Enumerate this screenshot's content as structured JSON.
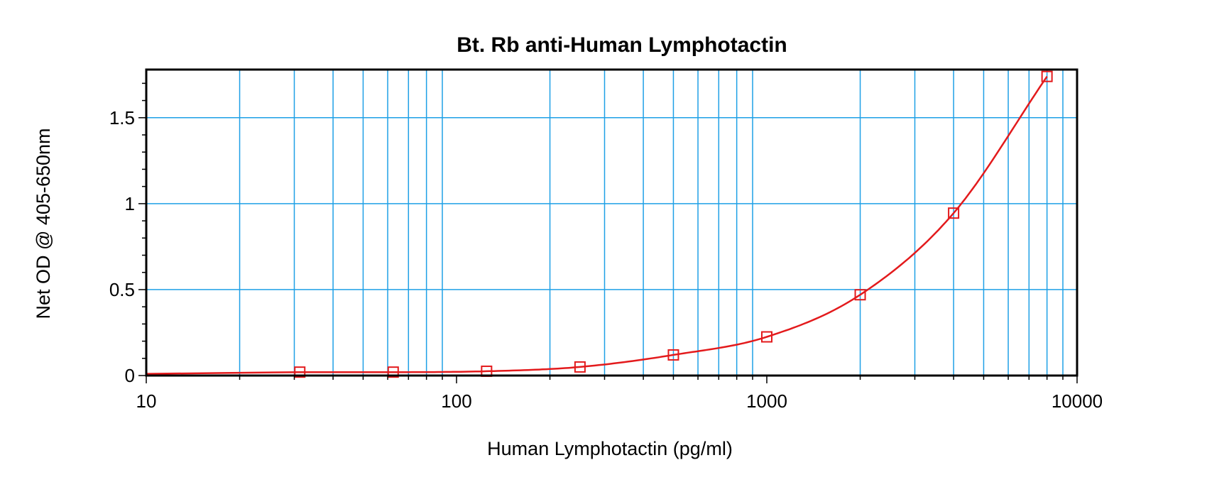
{
  "chart_data": {
    "type": "scatter",
    "title": "Bt. Rb anti-Human Lymphotactin",
    "xlabel": "Human Lymphotactin (pg/ml)",
    "ylabel": "Net OD @ 405-650nm",
    "x_scale": "log",
    "xlim": [
      10,
      10000
    ],
    "ylim": [
      0,
      1.78
    ],
    "x_ticks": [
      10,
      100,
      1000,
      10000
    ],
    "x_tick_labels": [
      "10",
      "100",
      "1000",
      "10000"
    ],
    "y_ticks": [
      0,
      0.5,
      1,
      1.5
    ],
    "y_tick_labels": [
      "0",
      "0.5",
      "1",
      "1.5"
    ],
    "grid": true,
    "legend": "none",
    "series": [
      {
        "marker": "open-square",
        "fit": "smooth-curve",
        "x": [
          31.25,
          62.5,
          125,
          250,
          500,
          1000,
          2000,
          4000,
          8000
        ],
        "y": [
          0.02,
          0.02,
          0.025,
          0.05,
          0.12,
          0.225,
          0.47,
          0.945,
          1.74
        ]
      }
    ],
    "colors": {
      "series": "#e31a1c",
      "grid": "#1ea0e6",
      "axes": "#000000",
      "background": "#ffffff"
    }
  }
}
